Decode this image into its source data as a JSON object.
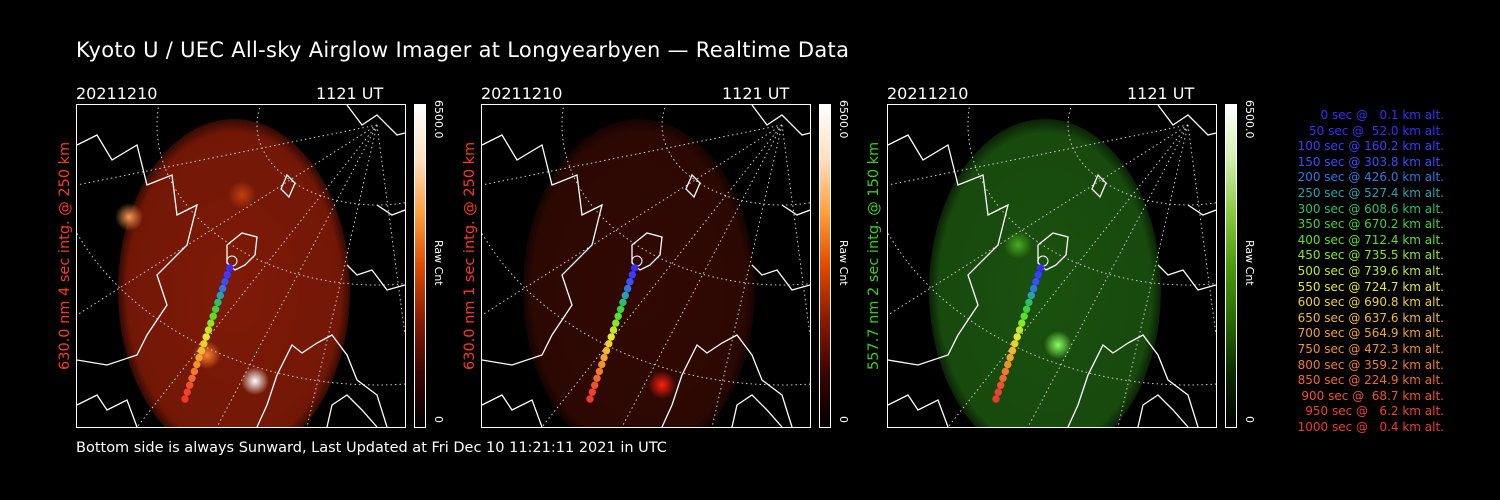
{
  "title": "Kyoto U / UEC All-sky Airglow Imager at Longyearbyen — Realtime Data",
  "footer": "Bottom side is always Sunward, Last Updated at Fri Dec 10 11:21:11 2021 in UTC",
  "panels": [
    {
      "date": "20211210",
      "time": "1121 UT",
      "ylabel": "630.0 nm 4 sec intg. @ 250 km",
      "color": "#ff3a1a",
      "cbar_max": "6500.0",
      "cbar_min": "0",
      "cbar_label": "Raw Cnt"
    },
    {
      "date": "20211210",
      "time": "1121 UT",
      "ylabel": "630.0 nm 1 sec intg. @ 250 km",
      "color": "#ff3a1a",
      "cbar_max": "6500.0",
      "cbar_min": "0",
      "cbar_label": "Raw Cnt"
    },
    {
      "date": "20211210",
      "time": "1121 UT",
      "ylabel": "557.7 nm 2 sec intg. @ 150 km",
      "color": "#34d21e",
      "cbar_max": "6500.0",
      "cbar_min": "0",
      "cbar_label": "Raw Cnt"
    }
  ],
  "legend": [
    {
      "text": "0 sec @   0.1 km alt.",
      "color": "#3a2cff"
    },
    {
      "text": "50 sec @  52.0 km alt.",
      "color": "#3a2cff"
    },
    {
      "text": "100 sec @ 160.2 km alt.",
      "color": "#3a3cff"
    },
    {
      "text": "150 sec @ 303.8 km alt.",
      "color": "#3550ff"
    },
    {
      "text": "200 sec @ 426.0 km alt.",
      "color": "#2c78e8"
    },
    {
      "text": "250 sec @ 527.4 km alt.",
      "color": "#2aa0b4"
    },
    {
      "text": "300 sec @ 608.6 km alt.",
      "color": "#2cbf6a"
    },
    {
      "text": "350 sec @ 670.2 km alt.",
      "color": "#3ed23a"
    },
    {
      "text": "400 sec @ 712.4 km alt.",
      "color": "#5ae02a"
    },
    {
      "text": "450 sec @ 735.5 km alt.",
      "color": "#8ae628"
    },
    {
      "text": "500 sec @ 739.6 km alt.",
      "color": "#bde82a"
    },
    {
      "text": "550 sec @ 724.7 km alt.",
      "color": "#e8e830"
    },
    {
      "text": "600 sec @ 690.8 km alt.",
      "color": "#f0d030"
    },
    {
      "text": "650 sec @ 637.6 km alt.",
      "color": "#f2b830"
    },
    {
      "text": "700 sec @ 564.9 km alt.",
      "color": "#f2a430"
    },
    {
      "text": "750 sec @ 472.3 km alt.",
      "color": "#f29030"
    },
    {
      "text": "800 sec @ 359.2 km alt.",
      "color": "#f27a30"
    },
    {
      "text": "850 sec @ 224.9 km alt.",
      "color": "#f06830"
    },
    {
      "text": "900 sec @  68.7 km alt.",
      "color": "#f05230"
    },
    {
      "text": "950 sec @   6.2 km alt.",
      "color": "#f04030"
    },
    {
      "text": "1000 sec @   0.4 km alt.",
      "color": "#f03a30"
    }
  ]
}
